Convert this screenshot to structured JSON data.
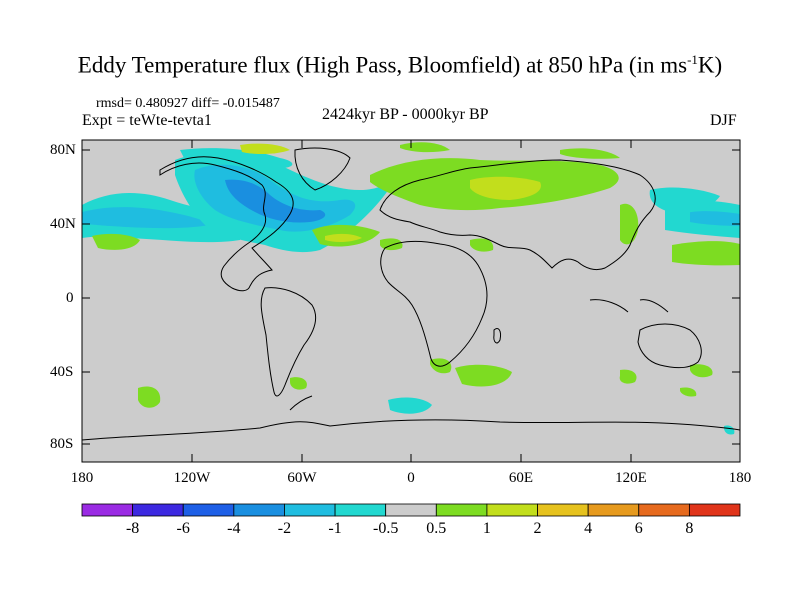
{
  "title": {
    "main": "Eddy Temperature flux (High Pass, Bloomfield) at 850 hPa (in ms",
    "sup": "-1",
    "unit_end": "K)"
  },
  "stats": "rmsd= 0.480927 diff= -0.015487",
  "experiment": "Expt = teWte-tevta1",
  "period": "2424kyr BP - 0000kyr BP",
  "season": "DJF",
  "axes": {
    "lat_labels": [
      "80N",
      "40N",
      "0",
      "40S",
      "80S"
    ],
    "lon_labels": [
      "180",
      "120W",
      "60W",
      "0",
      "60E",
      "120E",
      "180"
    ]
  },
  "colorbar": {
    "labels": [
      "-8",
      "-6",
      "-4",
      "-2",
      "-1",
      "-0.5",
      "0.5",
      "1",
      "2",
      "4",
      "6",
      "8"
    ],
    "colors": [
      "#9a2be3",
      "#3c28e0",
      "#1e5fe6",
      "#1a8fe0",
      "#1fbde0",
      "#22d8d0",
      "#cccccc",
      "#7ddc22",
      "#c2de1c",
      "#e6c21e",
      "#e69a1e",
      "#e66a1e",
      "#e0341a"
    ]
  }
}
